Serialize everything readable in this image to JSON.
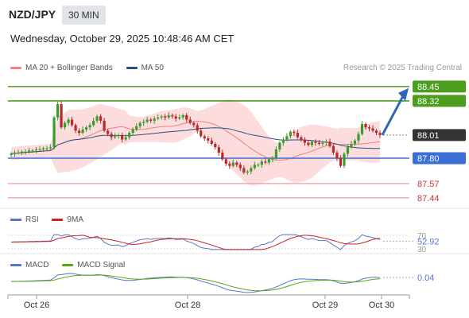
{
  "header": {
    "pair": "NZD/JPY",
    "timeframe": "30 MIN",
    "datetime": "Wednesday, October 29, 2025 10:48:46 AM CET"
  },
  "legend": {
    "main": [
      {
        "label": "MA 20 + Bollinger Bands",
        "color": "#f08080"
      },
      {
        "label": "MA 50",
        "color": "#2b4f86"
      }
    ],
    "rsi": [
      {
        "label": "RSI",
        "color": "#5577cc"
      },
      {
        "label": "9MA",
        "color": "#cc2222"
      }
    ],
    "macd": [
      {
        "label": "MACD",
        "color": "#5577cc"
      },
      {
        "label": "MACD Signal",
        "color": "#55aa11"
      }
    ]
  },
  "credit": "Research © 2025 Trading Central",
  "colors": {
    "up": "#3a9a2c",
    "down": "#b52a2a",
    "band": "#fbd0d0",
    "resistance": "#4d9e1f",
    "pivot": "#3a6fd8",
    "support": "#f19b9b",
    "current": "#333333",
    "arrow": "#2f66b8"
  },
  "chart_data": [
    {
      "type": "candlestick",
      "x_ticks": [
        "Oct 26",
        "Oct 28",
        "Oct 29",
        "Oct 30"
      ],
      "ylim": [
        87.36,
        88.55
      ],
      "current_price": 88.01,
      "levels": [
        {
          "value": 88.45,
          "label": "88.45",
          "kind": "resistance"
        },
        {
          "value": 88.32,
          "label": "88.32",
          "kind": "resistance"
        },
        {
          "value": 88.01,
          "label": "88.01",
          "kind": "current"
        },
        {
          "value": 87.8,
          "label": "87.80",
          "kind": "pivot"
        },
        {
          "value": 87.57,
          "label": "87.57",
          "kind": "support"
        },
        {
          "value": 87.44,
          "label": "87.44",
          "kind": "support"
        }
      ],
      "forecast_arrow": {
        "from": 88.01,
        "to": 88.45
      },
      "series": [
        {
          "name": "MA 20 + Bollinger Bands"
        },
        {
          "name": "MA 50"
        }
      ]
    },
    {
      "type": "line",
      "title": "RSI",
      "yticks": [
        70,
        30
      ],
      "current_value": 52.92,
      "current_label": "52.92",
      "series": [
        {
          "name": "RSI"
        },
        {
          "name": "9MA"
        }
      ]
    },
    {
      "type": "line",
      "title": "MACD",
      "current_value": 0.04,
      "current_label": "0.04",
      "series": [
        {
          "name": "MACD"
        },
        {
          "name": "MACD Signal"
        }
      ]
    }
  ]
}
